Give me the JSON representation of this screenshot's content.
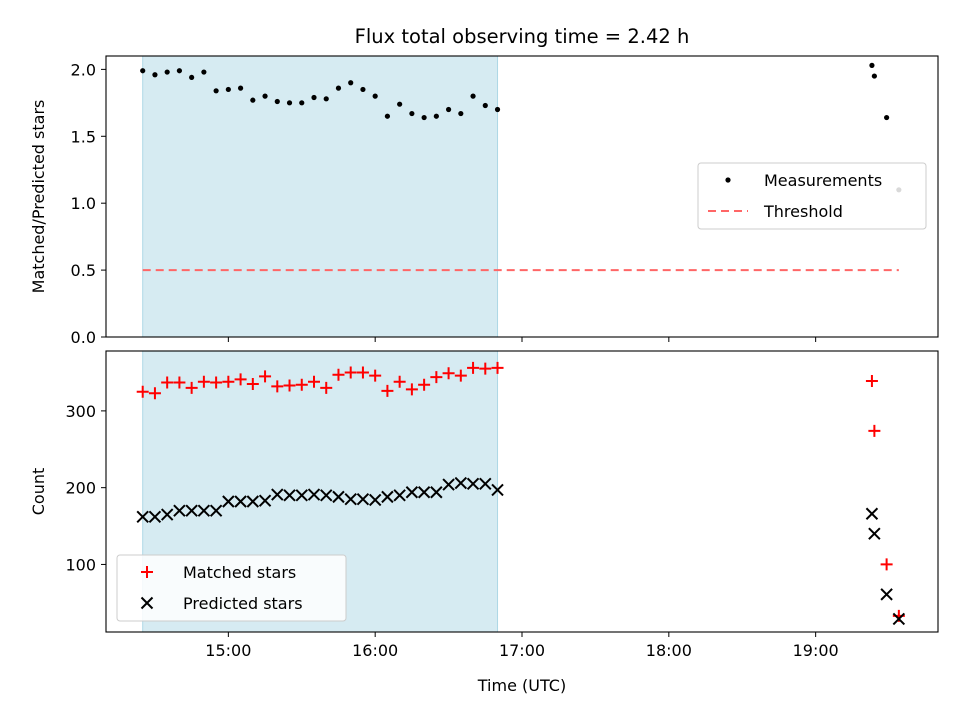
{
  "figure": {
    "title": "Flux total observing time = 2.42 h"
  },
  "chart_data": [
    {
      "type": "scatter",
      "ylabel": "Matched/Predicted stars",
      "xlabel": "",
      "xlim": [
        "14:10",
        "19:50"
      ],
      "ylim": [
        0,
        2.1
      ],
      "yticks": [
        0.0,
        0.5,
        1.0,
        1.5,
        2.0
      ],
      "ytick_labels": [
        "0.0",
        "0.5",
        "1.0",
        "1.5",
        "2.0"
      ],
      "shaded_span": {
        "from": "14:25",
        "to": "16:50",
        "color": "#add8e6"
      },
      "grid": false,
      "legend_position": "center-right",
      "series": [
        {
          "name": "Measurements",
          "marker": "dot",
          "color": "#000000",
          "x": [
            "14:25",
            "14:30",
            "14:35",
            "14:40",
            "14:45",
            "14:50",
            "14:55",
            "15:00",
            "15:05",
            "15:10",
            "15:15",
            "15:20",
            "15:25",
            "15:30",
            "15:35",
            "15:40",
            "15:45",
            "15:50",
            "15:55",
            "16:00",
            "16:05",
            "16:10",
            "16:15",
            "16:20",
            "16:25",
            "16:30",
            "16:35",
            "16:40",
            "16:45",
            "16:50",
            "19:23",
            "19:24",
            "19:29",
            "19:34"
          ],
          "y": [
            1.99,
            1.96,
            1.98,
            1.99,
            1.94,
            1.98,
            1.84,
            1.85,
            1.86,
            1.77,
            1.8,
            1.76,
            1.75,
            1.75,
            1.79,
            1.78,
            1.86,
            1.9,
            1.85,
            1.8,
            1.65,
            1.74,
            1.67,
            1.64,
            1.65,
            1.7,
            1.67,
            1.8,
            1.73,
            1.7,
            2.03,
            1.95,
            1.64,
            1.1
          ]
        },
        {
          "name": "Threshold",
          "line": "dashed",
          "color": "#ff6666",
          "x": [
            "14:25",
            "19:34"
          ],
          "y": [
            0.5,
            0.5
          ]
        }
      ]
    },
    {
      "type": "scatter",
      "ylabel": "Count",
      "xlabel": "Time (UTC)",
      "xlim": [
        "14:10",
        "19:50"
      ],
      "ylim": [
        12,
        378
      ],
      "yticks": [
        100,
        200,
        300
      ],
      "ytick_labels": [
        "100",
        "200",
        "300"
      ],
      "xticks": [
        "15:00",
        "16:00",
        "17:00",
        "18:00",
        "19:00"
      ],
      "xtick_labels": [
        "15:00",
        "16:00",
        "17:00",
        "18:00",
        "19:00"
      ],
      "shaded_span": {
        "from": "14:25",
        "to": "16:50",
        "color": "#add8e6"
      },
      "grid": false,
      "legend_position": "lower-left",
      "series": [
        {
          "name": "Matched stars",
          "marker": "plus",
          "color": "#ff0000",
          "x": [
            "14:25",
            "14:30",
            "14:35",
            "14:40",
            "14:45",
            "14:50",
            "14:55",
            "15:00",
            "15:05",
            "15:10",
            "15:15",
            "15:20",
            "15:25",
            "15:30",
            "15:35",
            "15:40",
            "15:45",
            "15:50",
            "15:55",
            "16:00",
            "16:05",
            "16:10",
            "16:15",
            "16:20",
            "16:25",
            "16:30",
            "16:35",
            "16:40",
            "16:45",
            "16:50",
            "19:23",
            "19:24",
            "19:29",
            "19:34"
          ],
          "y": [
            325,
            323,
            337,
            337,
            330,
            338,
            337,
            338,
            341,
            335,
            345,
            332,
            333,
            334,
            338,
            330,
            347,
            350,
            350,
            346,
            326,
            338,
            328,
            334,
            344,
            349,
            346,
            356,
            355,
            356,
            339,
            274,
            100,
            33
          ]
        },
        {
          "name": "Predicted stars",
          "marker": "x",
          "color": "#000000",
          "x": [
            "14:25",
            "14:30",
            "14:35",
            "14:40",
            "14:45",
            "14:50",
            "14:55",
            "15:00",
            "15:05",
            "15:10",
            "15:15",
            "15:20",
            "15:25",
            "15:30",
            "15:35",
            "15:40",
            "15:45",
            "15:50",
            "15:55",
            "16:00",
            "16:05",
            "16:10",
            "16:15",
            "16:20",
            "16:25",
            "16:30",
            "16:35",
            "16:40",
            "16:45",
            "16:50",
            "19:23",
            "19:24",
            "19:29",
            "19:34"
          ],
          "y": [
            162,
            162,
            165,
            170,
            170,
            170,
            170,
            182,
            182,
            182,
            183,
            191,
            190,
            190,
            191,
            190,
            188,
            185,
            185,
            184,
            188,
            190,
            194,
            194,
            194,
            204,
            206,
            205,
            205,
            197,
            166,
            140,
            61,
            29
          ]
        }
      ]
    }
  ]
}
